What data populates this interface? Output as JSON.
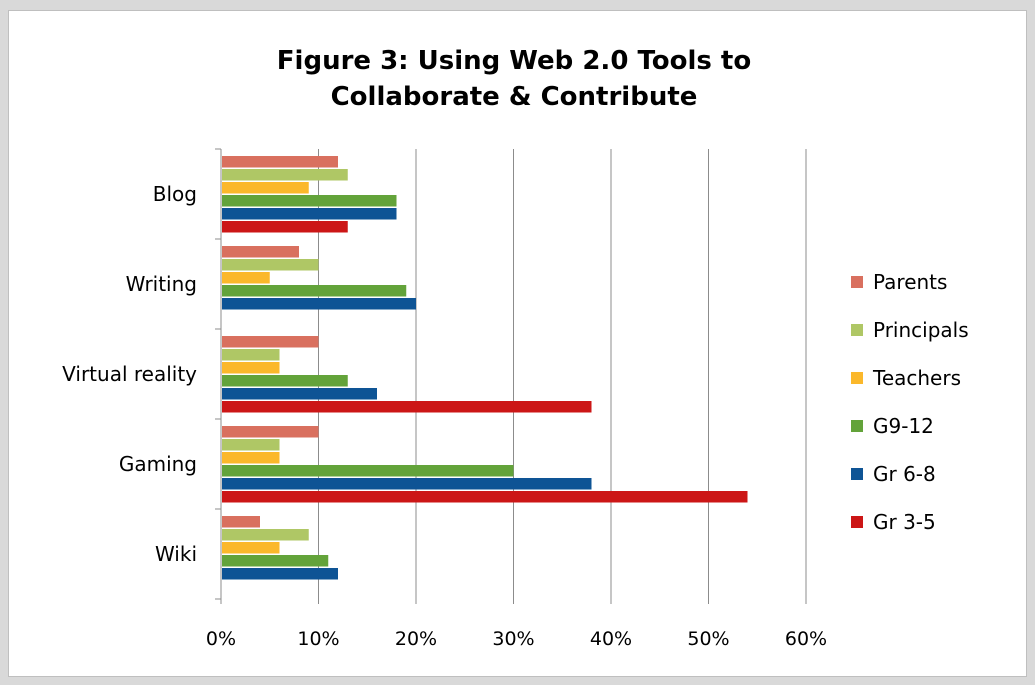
{
  "chart_data": {
    "type": "bar",
    "orientation": "horizontal",
    "title": "Figure 3: Using Web 2.0 Tools to Collaborate & Contribute",
    "title_lines": [
      "Figure 3: Using Web 2.0 Tools to",
      "Collaborate & Contribute"
    ],
    "categories": [
      "Blog",
      "Writing",
      "Virtual reality",
      "Gaming",
      "Wiki"
    ],
    "xlim": [
      0,
      60
    ],
    "x_ticks": [
      "0%",
      "10%",
      "20%",
      "30%",
      "40%",
      "50%",
      "60%"
    ],
    "grid": "vertical",
    "legend": "right",
    "series": [
      {
        "name": "Parents",
        "color": "#d9705f",
        "values": [
          12,
          8,
          10,
          10,
          4
        ]
      },
      {
        "name": "Principals",
        "color": "#afc765",
        "values": [
          13,
          10,
          6,
          6,
          9
        ]
      },
      {
        "name": "Teachers",
        "color": "#fbb82b",
        "values": [
          9,
          5,
          6,
          6,
          6
        ]
      },
      {
        "name": "G9-12",
        "color": "#63a33a",
        "values": [
          18,
          19,
          13,
          30,
          11
        ]
      },
      {
        "name": "Gr 6-8",
        "color": "#0e5495",
        "values": [
          18,
          20,
          16,
          38,
          12
        ]
      },
      {
        "name": "Gr 3-5",
        "color": "#cc1616",
        "values": [
          13,
          null,
          38,
          54,
          null
        ]
      }
    ]
  }
}
